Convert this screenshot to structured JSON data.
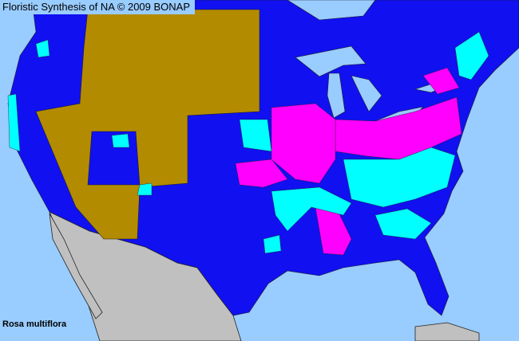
{
  "header": {
    "title": "Floristic Synthesis of NA © 2009 BONAP"
  },
  "map": {
    "species": "Rosa multiflora",
    "colors": {
      "water": "#99ccff",
      "present_state": "#1010f0",
      "absent_state": "#b38b00",
      "county_present": "#00ffff",
      "county_noxious_or_exotic": "#ff00ff",
      "outside_region": "#c0c0c0",
      "border": "#222222"
    }
  }
}
